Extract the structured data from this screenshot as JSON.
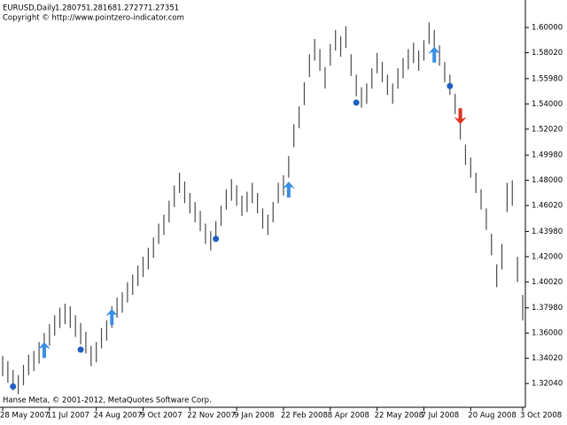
{
  "header": {
    "symbol": "EURUSD,Daily",
    "open": 1.28075,
    "high": 1.28168,
    "low": 1.27277,
    "close": 1.27351,
    "copyright": "Copyright © http://www.pointzero-indicator.com"
  },
  "footer": "Hanse Meta, © 2001-2012, MetaQuotes Software Corp.",
  "chart_data": {
    "type": "ohlc",
    "color": "#4a4a4a",
    "xlim": [
      0,
      100
    ],
    "xticks": [
      {
        "value": 0,
        "label": "28 May 2007"
      },
      {
        "value": 9,
        "label": "11 Jul 2007"
      },
      {
        "value": 18,
        "label": "24 Aug 2007"
      },
      {
        "value": 27,
        "label": "9 Oct 2007"
      },
      {
        "value": 36,
        "label": "22 Nov 2007"
      },
      {
        "value": 45,
        "label": "9 Jan 2008"
      },
      {
        "value": 54,
        "label": "22 Feb 2008"
      },
      {
        "value": 63,
        "label": "8 Apr 2008"
      },
      {
        "value": 72,
        "label": "22 May 2008"
      },
      {
        "value": 81,
        "label": "7 Jul 2008"
      },
      {
        "value": 90,
        "label": "20 Aug 2008"
      },
      {
        "value": 100,
        "label": "3 Oct 2008"
      }
    ],
    "ylim": [
      1.3017,
      1.6216
    ],
    "yticks": [
      {
        "value": 1.6,
        "label": "1.60000"
      },
      {
        "value": 1.5802,
        "label": "1.58020"
      },
      {
        "value": 1.5598,
        "label": "1.55980"
      },
      {
        "value": 1.54,
        "label": "1.54000"
      },
      {
        "value": 1.5202,
        "label": "1.52020"
      },
      {
        "value": 1.4998,
        "label": "1.49980"
      },
      {
        "value": 1.48,
        "label": "1.48000"
      },
      {
        "value": 1.4602,
        "label": "1.46020"
      },
      {
        "value": 1.4398,
        "label": "1.43980"
      },
      {
        "value": 1.42,
        "label": "1.42000"
      },
      {
        "value": 1.4002,
        "label": "1.40020"
      },
      {
        "value": 1.3798,
        "label": "1.37980"
      },
      {
        "value": 1.36,
        "label": "1.36000"
      },
      {
        "value": 1.3402,
        "label": "1.34020"
      },
      {
        "value": 1.3204,
        "label": "1.32040"
      }
    ],
    "high": [
      1.342,
      1.338,
      1.331,
      1.327,
      1.335,
      1.343,
      1.346,
      1.353,
      1.36,
      1.367,
      1.374,
      1.38,
      1.383,
      1.381,
      1.374,
      1.368,
      1.361,
      1.35,
      1.353,
      1.364,
      1.37,
      1.381,
      1.388,
      1.392,
      1.4,
      1.406,
      1.413,
      1.42,
      1.427,
      1.435,
      1.446,
      1.453,
      1.464,
      1.476,
      1.486,
      1.479,
      1.47,
      1.463,
      1.456,
      1.446,
      1.44,
      1.448,
      1.46,
      1.473,
      1.481,
      1.476,
      1.468,
      1.471,
      1.478,
      1.47,
      1.458,
      1.453,
      1.463,
      1.478,
      1.484,
      1.499,
      1.524,
      1.538,
      1.557,
      1.579,
      1.591,
      1.583,
      1.569,
      1.587,
      1.598,
      1.593,
      1.601,
      1.579,
      1.563,
      1.553,
      1.556,
      1.568,
      1.58,
      1.573,
      1.563,
      1.556,
      1.568,
      1.576,
      1.583,
      1.588,
      1.582,
      1.59,
      1.604,
      1.598,
      1.586,
      1.573,
      1.563,
      1.548,
      1.534,
      1.508,
      1.498,
      1.486,
      1.473,
      1.458,
      1.438,
      1.414,
      1.43,
      1.478,
      1.48,
      1.42,
      1.39
    ],
    "low": [
      1.326,
      1.321,
      1.315,
      1.312,
      1.319,
      1.327,
      1.33,
      1.336,
      1.344,
      1.35,
      1.358,
      1.364,
      1.367,
      1.364,
      1.357,
      1.351,
      1.344,
      1.334,
      1.337,
      1.348,
      1.354,
      1.364,
      1.372,
      1.376,
      1.384,
      1.39,
      1.397,
      1.404,
      1.41,
      1.419,
      1.43,
      1.437,
      1.447,
      1.459,
      1.47,
      1.462,
      1.454,
      1.447,
      1.44,
      1.43,
      1.425,
      1.432,
      1.444,
      1.457,
      1.464,
      1.46,
      1.452,
      1.455,
      1.462,
      1.454,
      1.442,
      1.437,
      1.447,
      1.462,
      1.468,
      1.482,
      1.506,
      1.521,
      1.539,
      1.561,
      1.574,
      1.566,
      1.552,
      1.57,
      1.582,
      1.577,
      1.584,
      1.562,
      1.546,
      1.537,
      1.54,
      1.552,
      1.564,
      1.557,
      1.547,
      1.54,
      1.552,
      1.56,
      1.567,
      1.572,
      1.566,
      1.574,
      1.587,
      1.582,
      1.57,
      1.557,
      1.547,
      1.532,
      1.512,
      1.492,
      1.482,
      1.47,
      1.457,
      1.441,
      1.421,
      1.396,
      1.41,
      1.455,
      1.46,
      1.4,
      1.37
    ],
    "up_arrows": {
      "color": "#3a8ee6",
      "x": [
        8,
        21,
        55,
        83
      ],
      "values": [
        1.346,
        1.372,
        1.472,
        1.578
      ]
    },
    "down_arrows": {
      "color": "#e0301e",
      "x": [
        88
      ],
      "values": [
        1.531
      ]
    },
    "dots": {
      "color": "#1f5fbf",
      "x": [
        2,
        15,
        41,
        68,
        86
      ],
      "values": [
        1.318,
        1.347,
        1.434,
        1.541,
        1.554
      ]
    }
  }
}
